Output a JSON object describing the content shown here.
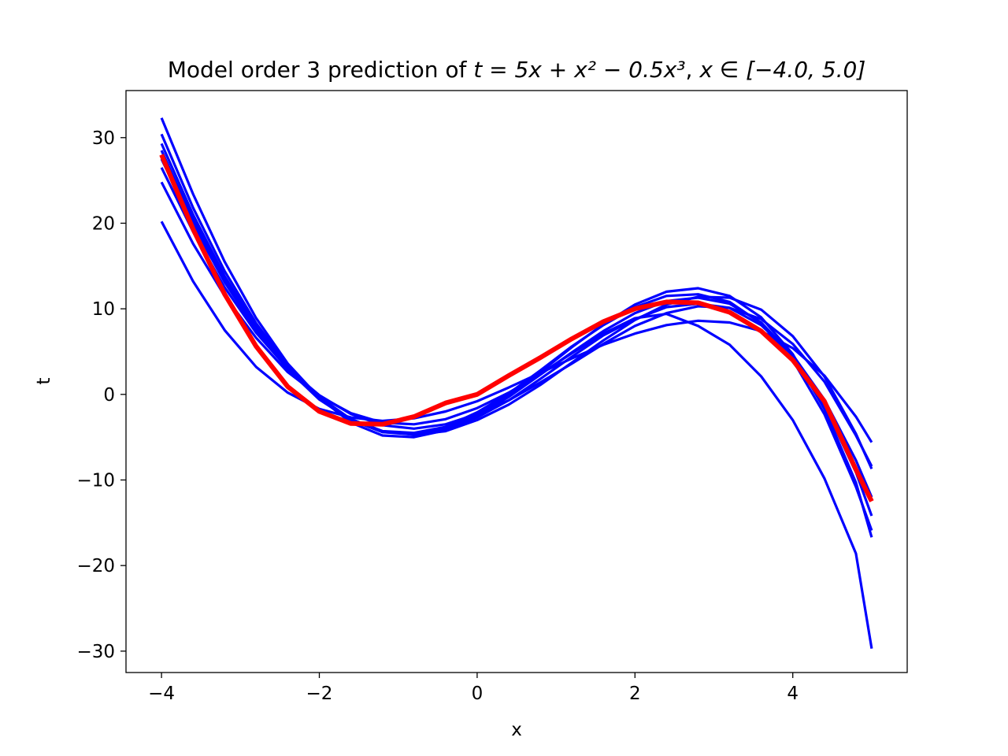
{
  "chart_data": {
    "type": "line",
    "title": {
      "text": "Model order 3 prediction of ",
      "formula": "t = 5x + x² − 0.5x³",
      "sep": ", ",
      "domain": "x ∈ [−4.0, 5.0]"
    },
    "xlabel": "x",
    "ylabel": "t",
    "xlim": [
      -4.45,
      5.45
    ],
    "ylim": [
      -32.5,
      35.5
    ],
    "xticks": [
      -4,
      -2,
      0,
      2,
      4
    ],
    "xtick_labels": [
      "−4",
      "−2",
      "0",
      "2",
      "4"
    ],
    "yticks": [
      -30,
      -20,
      -10,
      0,
      10,
      20,
      30
    ],
    "ytick_labels": [
      "−30",
      "−20",
      "−10",
      "0",
      "10",
      "20",
      "30"
    ],
    "grid": false,
    "x": [
      -4.0,
      -3.6,
      -3.2,
      -2.8,
      -2.4,
      -2.0,
      -1.6,
      -1.2,
      -0.8,
      -0.4,
      0.0,
      0.4,
      0.8,
      1.2,
      1.6,
      2.0,
      2.4,
      2.8,
      3.2,
      3.6,
      4.0,
      4.4,
      4.8,
      5.0
    ],
    "model_series": [
      {
        "color": "#0000ff",
        "values": [
          20.2,
          13.2,
          7.5,
          3.2,
          0.2,
          -1.7,
          -2.7,
          -3.1,
          -2.8,
          -2.0,
          -0.8,
          0.8,
          2.5,
          4.2,
          5.8,
          7.1,
          8.1,
          8.6,
          8.4,
          7.4,
          5.4,
          2.2,
          -2.6,
          -5.6
        ]
      },
      {
        "color": "#0000ff",
        "values": [
          24.8,
          17.6,
          11.5,
          6.6,
          2.6,
          -0.2,
          -2.2,
          -3.3,
          -3.5,
          -2.9,
          -1.6,
          0.2,
          2.4,
          4.8,
          7.1,
          8.9,
          9.4,
          8.0,
          5.8,
          2.1,
          -3.0,
          -9.8,
          -18.6,
          -29.7
        ]
      },
      {
        "color": "#0000ff",
        "values": [
          26.5,
          19.0,
          12.5,
          7.2,
          3.0,
          -0.1,
          -2.3,
          -3.6,
          -4.0,
          -3.5,
          -2.3,
          -0.7,
          1.4,
          3.6,
          5.9,
          8.0,
          9.5,
          10.3,
          10.1,
          8.8,
          5.9,
          1.5,
          -4.8,
          -8.4
        ]
      },
      {
        "color": "#0000ff",
        "values": [
          27.5,
          19.8,
          13.1,
          7.5,
          3.0,
          -0.4,
          -2.9,
          -4.3,
          -4.7,
          -4.3,
          -3.0,
          -1.2,
          1.1,
          3.7,
          6.3,
          8.7,
          10.5,
          11.4,
          11.3,
          9.9,
          6.8,
          2.1,
          -4.6,
          -8.7
        ]
      },
      {
        "color": "#0000ff",
        "values": [
          28.5,
          20.4,
          13.4,
          7.6,
          2.9,
          -0.6,
          -3.0,
          -4.4,
          -4.7,
          -4.1,
          -2.7,
          -0.7,
          1.8,
          4.4,
          6.9,
          8.8,
          10.2,
          10.6,
          10.1,
          8.1,
          4.6,
          -0.6,
          -7.7,
          -12.0
        ]
      },
      {
        "color": "#0000ff",
        "values": [
          29.3,
          21.0,
          13.8,
          7.9,
          3.1,
          -0.5,
          -3.0,
          -4.4,
          -4.6,
          -3.9,
          -2.4,
          -0.3,
          2.3,
          4.9,
          7.4,
          9.5,
          10.9,
          11.3,
          10.6,
          8.4,
          4.5,
          -1.3,
          -9.1,
          -14.2
        ]
      },
      {
        "color": "#0000ff",
        "values": [
          30.4,
          21.8,
          14.4,
          8.3,
          3.4,
          -0.3,
          -2.9,
          -4.3,
          -4.5,
          -3.8,
          -2.1,
          0.1,
          2.8,
          5.6,
          8.1,
          10.2,
          11.5,
          11.7,
          10.8,
          8.3,
          4.0,
          -2.3,
          -10.8,
          -15.9
        ]
      },
      {
        "color": "#0000ff",
        "values": [
          32.3,
          23.4,
          15.5,
          8.9,
          3.6,
          -0.4,
          -3.3,
          -4.8,
          -5.0,
          -4.2,
          -2.5,
          -0.1,
          2.6,
          5.5,
          8.2,
          10.5,
          12.0,
          12.4,
          11.5,
          9.0,
          4.7,
          -1.7,
          -10.3,
          -16.7
        ]
      }
    ],
    "true_series": {
      "color": "#ff0000",
      "values": [
        28.0,
        19.3,
        11.7,
        5.6,
        0.9,
        -2.0,
        -3.4,
        -3.5,
        -2.6,
        -1.0,
        0.0,
        2.2,
        4.3,
        6.5,
        8.5,
        10.0,
        10.8,
        10.7,
        9.6,
        7.4,
        4.0,
        -0.8,
        -8.8,
        -12.5
      ]
    }
  }
}
